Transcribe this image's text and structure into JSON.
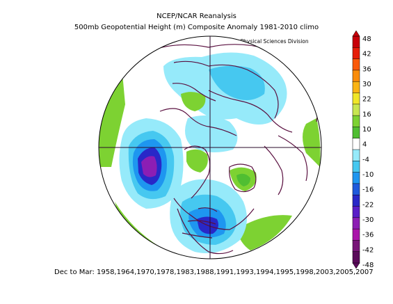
{
  "header": {
    "line1": "NCEP/NCAR Reanalysis",
    "line2": "500mb Geopotential Height (m) Composite Anomaly 1981-2010 climo",
    "credit": "NOAA/ESRL Physical Sciences Division"
  },
  "footer": {
    "text": "Dec to Mar: 1958,1964,1970,1978,1983,1988,1991,1993,1994,1995,1998,2003,2005,2007"
  },
  "colorbar": {
    "labels": [
      "48",
      "42",
      "36",
      "30",
      "22",
      "16",
      "10",
      "4",
      "-4",
      "-10",
      "-16",
      "-22",
      "-30",
      "-36",
      "-42",
      "-48"
    ],
    "colors": [
      "#c8000a",
      "#e61e0a",
      "#fa5a0a",
      "#fa8c0a",
      "#fab414",
      "#f0e628",
      "#c8e650",
      "#7dd232",
      "#50be32",
      "#ffffff",
      "#96eafa",
      "#46c8f0",
      "#1e96f0",
      "#1e5adc",
      "#2828c8",
      "#5a1ec8",
      "#8c1eb4",
      "#aa14aa",
      "#781478",
      "#5a0a5a"
    ]
  },
  "map": {
    "projection": "north-polar-stereographic",
    "legend_colors": {
      "positive_light": "#7dd232",
      "positive_mid": "#50be32",
      "negative_light": "#96eafa",
      "negative_mid": "#46c8f0",
      "negative_strong": "#1e96f0",
      "negative_deep": "#2828c8",
      "negative_extreme": "#8c1eb4"
    }
  }
}
